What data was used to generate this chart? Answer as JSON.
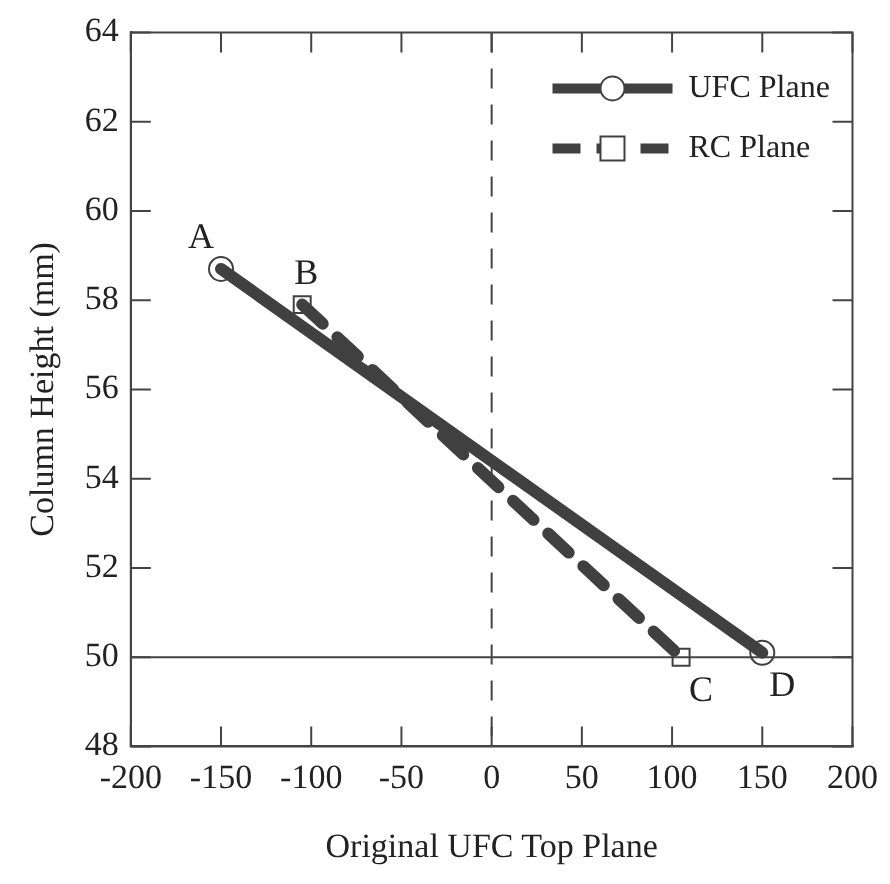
{
  "chart_data": {
    "type": "line",
    "xlabel": "Original UFC Top Plane",
    "ylabel": "Column Height (mm)",
    "series": [
      {
        "name": "UFC Plane",
        "color": "#404040",
        "x": [
          -150,
          150
        ],
        "values": [
          58.7,
          50.1
        ],
        "marker": "circle",
        "line_style": "solid"
      },
      {
        "name": "RC Plane",
        "color": "#404040",
        "x": [
          -105,
          105
        ],
        "values": [
          57.9,
          50.0
        ],
        "marker": "square",
        "line_style": "dashed"
      }
    ],
    "xlim": [
      -200,
      200
    ],
    "xticks": [
      -200,
      -150,
      -100,
      -50,
      0,
      50,
      100,
      150,
      200
    ],
    "ylim": [
      48,
      64
    ],
    "yticks": [
      48,
      50,
      52,
      54,
      56,
      58,
      60,
      62,
      64
    ],
    "ref_lines": [
      {
        "axis": "x",
        "value": 0,
        "line_style": "dashed"
      },
      {
        "axis": "y",
        "value": 50,
        "line_style": "solid"
      }
    ],
    "annotations": [
      {
        "text": "A",
        "x": -150,
        "y": 58.7
      },
      {
        "text": "B",
        "x": -105,
        "y": 57.9
      },
      {
        "text": "C",
        "x": 105,
        "y": 50.0
      },
      {
        "text": "D",
        "x": 150,
        "y": 50.1
      }
    ],
    "legend": "top right",
    "grid": false
  }
}
